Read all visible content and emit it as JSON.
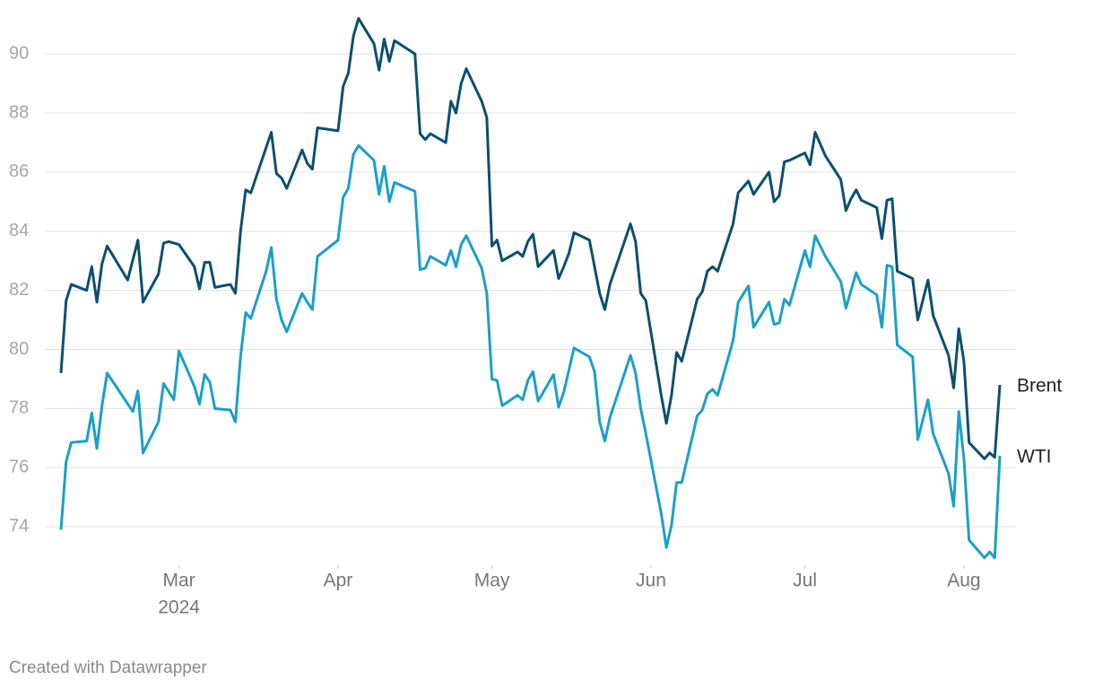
{
  "chart_data": {
    "type": "line",
    "credit": "Created with Datawrapper",
    "year_label": "2024",
    "xlim": [
      38,
      221
    ],
    "xticks": [
      {
        "value": 61,
        "label": "Mar"
      },
      {
        "value": 92,
        "label": "Apr"
      },
      {
        "value": 122,
        "label": "May"
      },
      {
        "value": 153,
        "label": "Jun"
      },
      {
        "value": 183,
        "label": "Jul"
      },
      {
        "value": 214,
        "label": "Aug"
      }
    ],
    "ylim": [
      72.7,
      91.4
    ],
    "yticks": [
      74,
      76,
      78,
      80,
      82,
      84,
      86,
      88,
      90
    ],
    "grid": true,
    "series": [
      {
        "name": "Brent",
        "color": "#0b4f71",
        "x": [
          38,
          39,
          40,
          43,
          44,
          45,
          46,
          47,
          51,
          53,
          54,
          57,
          58,
          59,
          61,
          64,
          65,
          66,
          67,
          68,
          71,
          72,
          73,
          74,
          75,
          79,
          80,
          81,
          82,
          85,
          86,
          87,
          88,
          92,
          93,
          94,
          95,
          96,
          99,
          100,
          101,
          102,
          103,
          107,
          108,
          109,
          110,
          113,
          114,
          115,
          116,
          117,
          120,
          121,
          122,
          123,
          124,
          127,
          128,
          129,
          130,
          131,
          134,
          135,
          136,
          137,
          138,
          141,
          143,
          144,
          145,
          149,
          150,
          151,
          152,
          155,
          156,
          157,
          158,
          159,
          162,
          163,
          164,
          165,
          166,
          169,
          170,
          172,
          173,
          176,
          177,
          178,
          179,
          180,
          183,
          184,
          185,
          187,
          190,
          191,
          192,
          193,
          194,
          197,
          198,
          199,
          200,
          201,
          204,
          205,
          207,
          208,
          211,
          212,
          213,
          214,
          215,
          218,
          219,
          220,
          221
        ],
        "values": [
          79.2,
          81.65,
          82.2,
          82.0,
          82.8,
          81.6,
          82.9,
          83.5,
          82.35,
          83.7,
          81.6,
          82.55,
          83.6,
          83.65,
          83.55,
          82.8,
          82.05,
          82.95,
          82.95,
          82.1,
          82.2,
          81.9,
          84.0,
          85.4,
          85.3,
          87.35,
          85.95,
          85.8,
          85.45,
          86.75,
          86.3,
          86.1,
          87.5,
          87.4,
          88.9,
          89.35,
          90.6,
          91.2,
          90.35,
          89.45,
          90.5,
          89.75,
          90.45,
          90.0,
          87.3,
          87.1,
          87.3,
          87.0,
          88.4,
          88.0,
          89.0,
          89.5,
          88.4,
          87.85,
          83.5,
          83.7,
          83.0,
          83.3,
          83.15,
          83.65,
          83.9,
          82.8,
          83.35,
          82.4,
          82.8,
          83.25,
          83.95,
          83.7,
          81.9,
          81.35,
          82.2,
          84.25,
          83.65,
          81.9,
          81.65,
          78.45,
          77.5,
          78.45,
          79.9,
          79.6,
          81.7,
          81.95,
          82.65,
          82.8,
          82.65,
          84.25,
          85.3,
          85.7,
          85.25,
          86.0,
          85.0,
          85.2,
          86.35,
          86.4,
          86.65,
          86.25,
          87.35,
          86.55,
          85.75,
          84.7,
          85.1,
          85.4,
          85.05,
          84.8,
          83.75,
          85.05,
          85.1,
          82.65,
          82.4,
          81.0,
          82.35,
          81.15,
          79.8,
          78.7,
          80.7,
          79.6,
          76.85,
          76.3,
          76.5,
          76.35,
          78.8
        ]
      },
      {
        "name": "WTI",
        "color": "#1a9fcb",
        "x": [
          38,
          39,
          40,
          43,
          44,
          45,
          46,
          47,
          52,
          53,
          54,
          57,
          58,
          60,
          61,
          64,
          65,
          66,
          67,
          68,
          71,
          72,
          73,
          74,
          75,
          78,
          79,
          80,
          81,
          82,
          85,
          86,
          87,
          88,
          92,
          93,
          94,
          95,
          96,
          99,
          100,
          101,
          102,
          103,
          107,
          108,
          109,
          110,
          113,
          114,
          115,
          116,
          117,
          120,
          121,
          122,
          123,
          124,
          127,
          128,
          129,
          130,
          131,
          134,
          135,
          136,
          137,
          138,
          141,
          142,
          143,
          144,
          145,
          149,
          150,
          151,
          152,
          155,
          156,
          157,
          158,
          159,
          162,
          163,
          164,
          165,
          166,
          169,
          170,
          172,
          173,
          176,
          177,
          178,
          179,
          180,
          183,
          184,
          185,
          187,
          190,
          191,
          192,
          193,
          194,
          197,
          198,
          199,
          200,
          201,
          204,
          205,
          207,
          208,
          211,
          212,
          213,
          214,
          215,
          218,
          219,
          220,
          221
        ],
        "values": [
          73.9,
          76.2,
          76.85,
          76.9,
          77.85,
          76.65,
          78.1,
          79.2,
          77.9,
          78.6,
          76.5,
          77.55,
          78.85,
          78.3,
          79.95,
          78.75,
          78.15,
          79.15,
          78.9,
          78.0,
          77.95,
          77.55,
          79.75,
          81.25,
          81.05,
          82.65,
          83.45,
          81.7,
          81.0,
          80.6,
          81.9,
          81.6,
          81.35,
          83.15,
          83.7,
          85.15,
          85.45,
          86.6,
          86.9,
          86.4,
          85.25,
          86.2,
          85.0,
          85.65,
          85.35,
          82.7,
          82.75,
          83.15,
          82.85,
          83.35,
          82.8,
          83.55,
          83.85,
          82.75,
          81.9,
          79.0,
          78.95,
          78.1,
          78.45,
          78.3,
          78.95,
          79.25,
          78.25,
          79.15,
          78.05,
          78.55,
          79.3,
          80.05,
          79.75,
          79.25,
          77.55,
          76.9,
          77.7,
          79.8,
          79.2,
          78.0,
          77.15,
          74.45,
          73.3,
          74.05,
          75.5,
          75.5,
          77.75,
          77.95,
          78.5,
          78.65,
          78.45,
          80.3,
          81.6,
          82.15,
          80.75,
          81.6,
          80.85,
          80.9,
          81.7,
          81.5,
          83.35,
          82.8,
          83.85,
          83.15,
          82.3,
          81.4,
          82.0,
          82.6,
          82.2,
          81.85,
          80.75,
          82.85,
          82.8,
          80.15,
          79.75,
          76.95,
          78.3,
          77.15,
          75.8,
          74.7,
          77.9,
          76.3,
          73.55,
          72.95,
          73.15,
          72.95,
          76.4
        ]
      }
    ]
  }
}
